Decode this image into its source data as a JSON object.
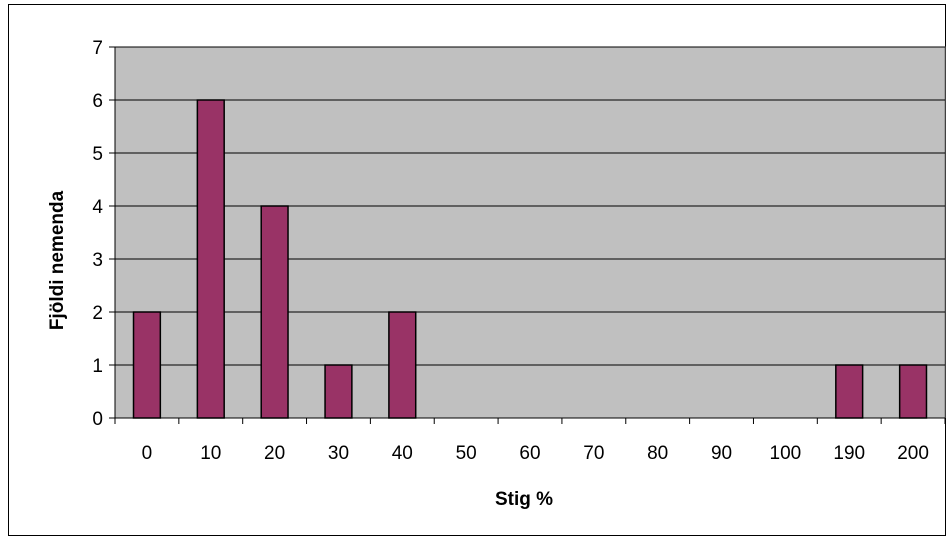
{
  "chart_data": {
    "type": "bar",
    "title": "",
    "xlabel": "Stig %",
    "ylabel": "Fjöldi nemenda",
    "categories": [
      "0",
      "10",
      "20",
      "30",
      "40",
      "50",
      "60",
      "70",
      "80",
      "90",
      "100",
      "190",
      "200"
    ],
    "values": [
      2,
      6,
      4,
      1,
      2,
      0,
      0,
      0,
      0,
      0,
      0,
      1,
      1
    ],
    "ylim": [
      0,
      7
    ],
    "yticks": [
      0,
      1,
      2,
      3,
      4,
      5,
      6,
      7
    ],
    "grid": true,
    "legend": "none",
    "colors": {
      "bar": "#993366",
      "plot_background": "#c0c0c0",
      "gridline": "#000000"
    }
  }
}
